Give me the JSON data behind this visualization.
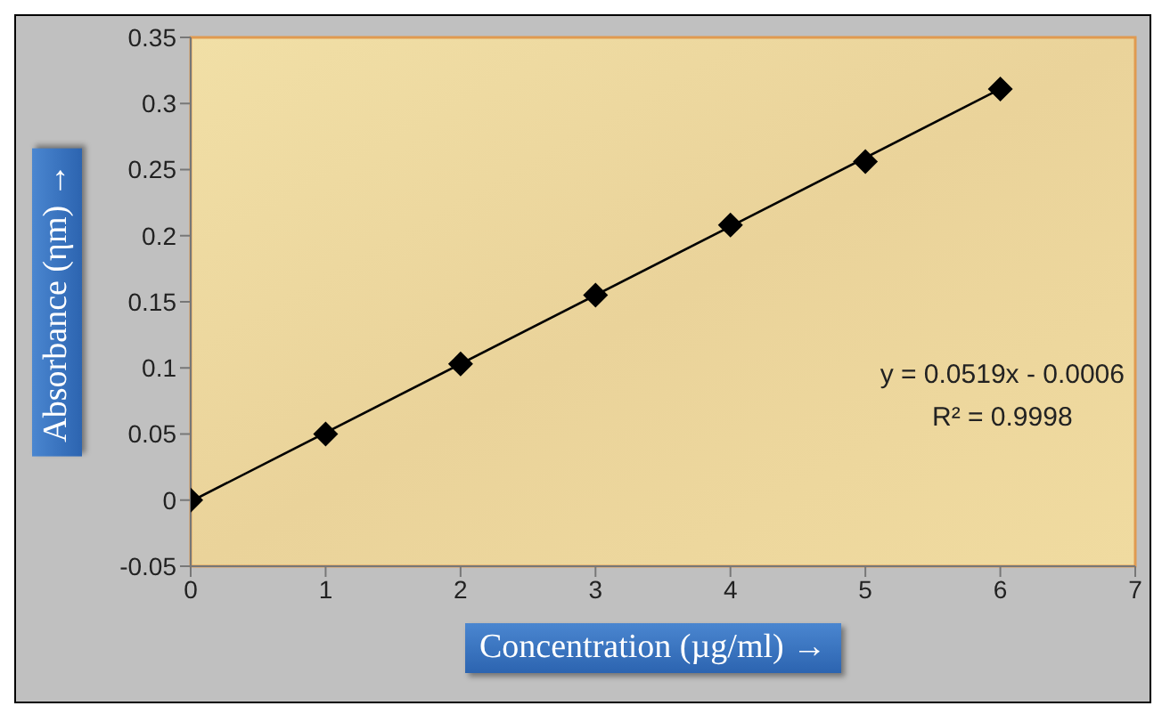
{
  "chart_data": {
    "type": "scatter",
    "xlabel": "Concentration (µg/ml) →",
    "ylabel": "Absorbance (ηm) →",
    "x": [
      0,
      1,
      2,
      3,
      4,
      5,
      6
    ],
    "series": [
      {
        "color": "#000000",
        "marker": "diamond",
        "values": [
          0,
          0.05,
          0.103,
          0.155,
          0.208,
          0.256,
          0.311
        ]
      },
      {
        "type": "line",
        "color": "#000000",
        "x": [
          0,
          6
        ],
        "values": [
          -0.001,
          0.311
        ]
      }
    ],
    "xlim": [
      0,
      7
    ],
    "xticks": [
      0,
      1,
      2,
      3,
      4,
      5,
      6,
      7
    ],
    "ylim": [
      -0.05,
      0.35
    ],
    "yticks": [
      -0.05,
      0,
      0.05,
      0.1,
      0.15,
      0.2,
      0.25,
      0.3,
      0.35
    ],
    "annotations": [
      "y = 0.0519x - 0.0006",
      "R² = 0.9998"
    ],
    "legend": false
  }
}
